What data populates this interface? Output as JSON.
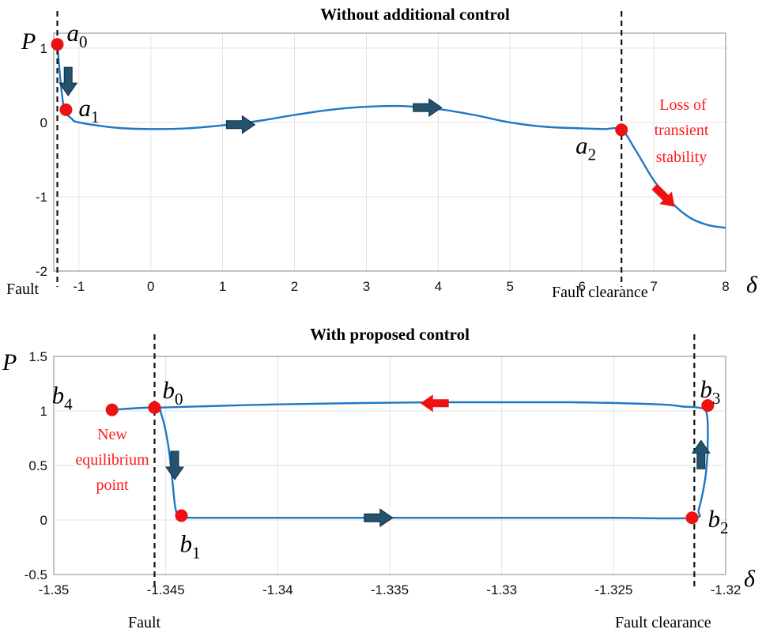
{
  "chart_data": [
    {
      "type": "line",
      "title": "Without additional control",
      "xlabel": "δ",
      "ylabel": "P",
      "xlim": [
        -1.35,
        8
      ],
      "ylim": [
        -2,
        1.2
      ],
      "xticks": [
        -1,
        0,
        1,
        2,
        3,
        4,
        5,
        6,
        7,
        8
      ],
      "yticks": [
        -2,
        -1,
        0,
        1
      ],
      "grid": true,
      "series": [
        {
          "x": [
            -1.3,
            -1.25,
            -1.2,
            -1.1,
            -1.0,
            -0.5,
            0,
            0.5,
            1,
            1.5,
            2,
            2.5,
            3,
            3.5,
            4,
            4.5,
            5,
            5.5,
            6,
            6.3,
            6.55,
            6.75,
            7.0,
            7.25,
            7.5,
            7.75,
            8.0
          ],
          "y": [
            1.05,
            0.5,
            0.17,
            0.05,
            0.0,
            -0.07,
            -0.09,
            -0.08,
            -0.04,
            0.02,
            0.1,
            0.17,
            0.21,
            0.22,
            0.18,
            0.1,
            0.0,
            -0.06,
            -0.08,
            -0.09,
            -0.1,
            -0.38,
            -0.78,
            -1.08,
            -1.28,
            -1.38,
            -1.42
          ]
        }
      ],
      "points": [
        {
          "label": "a",
          "sub": "0",
          "x": -1.3,
          "y": 1.05
        },
        {
          "label": "a",
          "sub": "1",
          "x": -1.18,
          "y": 0.17
        },
        {
          "label": "a",
          "sub": "2",
          "x": 6.55,
          "y": -0.1
        }
      ],
      "vlines": [
        {
          "x": -1.3,
          "label": "Fault"
        },
        {
          "x": 6.55,
          "label": "Fault clearance"
        }
      ],
      "arrows": [
        {
          "color": "blue",
          "x": -1.15,
          "y": 0.55,
          "dir": "down"
        },
        {
          "color": "blue",
          "x": 1.25,
          "y": -0.03,
          "dir": "right"
        },
        {
          "color": "blue",
          "x": 3.85,
          "y": 0.2,
          "dir": "right"
        },
        {
          "color": "red",
          "x": 7.15,
          "y": -1.0,
          "dir": "down-right"
        }
      ],
      "annotation": [
        "Loss of",
        "transient",
        "stability"
      ]
    },
    {
      "type": "line",
      "title": "With proposed control",
      "xlabel": "δ",
      "ylabel": "P",
      "xlim": [
        -1.35,
        -1.32
      ],
      "ylim": [
        -0.5,
        1.5
      ],
      "xticks": [
        -1.35,
        -1.345,
        -1.34,
        -1.335,
        -1.33,
        -1.325,
        -1.32
      ],
      "yticks": [
        -0.5,
        0,
        0.5,
        1,
        1.5
      ],
      "grid": true,
      "series": [
        {
          "x": [
            -1.3474,
            -1.3455,
            -1.3452,
            -1.3449,
            -1.3447,
            -1.3446,
            -1.3445,
            -1.3443,
            -1.3435,
            -1.34,
            -1.335,
            -1.33,
            -1.325,
            -1.3215,
            -1.3212,
            -1.3209,
            -1.3208,
            -1.32085,
            -1.3212,
            -1.3219,
            -1.323,
            -1.327,
            -1.333,
            -1.34,
            -1.3455
          ],
          "y": [
            1.01,
            1.03,
            0.97,
            0.7,
            0.35,
            0.15,
            0.06,
            0.03,
            0.02,
            0.02,
            0.02,
            0.02,
            0.02,
            0.02,
            0.1,
            0.4,
            0.7,
            0.98,
            1.03,
            1.04,
            1.06,
            1.08,
            1.08,
            1.06,
            1.03
          ]
        }
      ],
      "points": [
        {
          "label": "b",
          "sub": "0",
          "x": -1.3455,
          "y": 1.03
        },
        {
          "label": "b",
          "sub": "1",
          "x": -1.3443,
          "y": 0.04
        },
        {
          "label": "b",
          "sub": "2",
          "x": -1.3215,
          "y": 0.02
        },
        {
          "label": "b",
          "sub": "3",
          "x": -1.3208,
          "y": 1.05
        },
        {
          "label": "b",
          "sub": "4",
          "x": -1.3474,
          "y": 1.01
        }
      ],
      "vlines": [
        {
          "x": -1.3455,
          "label": "Fault"
        },
        {
          "x": -1.3214,
          "label": "Fault clearance"
        }
      ],
      "arrows": [
        {
          "color": "blue",
          "x": -1.3446,
          "y": 0.5,
          "dir": "down"
        },
        {
          "color": "blue",
          "x": -1.3355,
          "y": 0.02,
          "dir": "right"
        },
        {
          "color": "blue",
          "x": -1.3211,
          "y": 0.6,
          "dir": "up"
        },
        {
          "color": "red",
          "x": -1.333,
          "y": 1.07,
          "dir": "left"
        }
      ],
      "annotation": [
        "New",
        "equilibrium",
        "point"
      ]
    }
  ]
}
